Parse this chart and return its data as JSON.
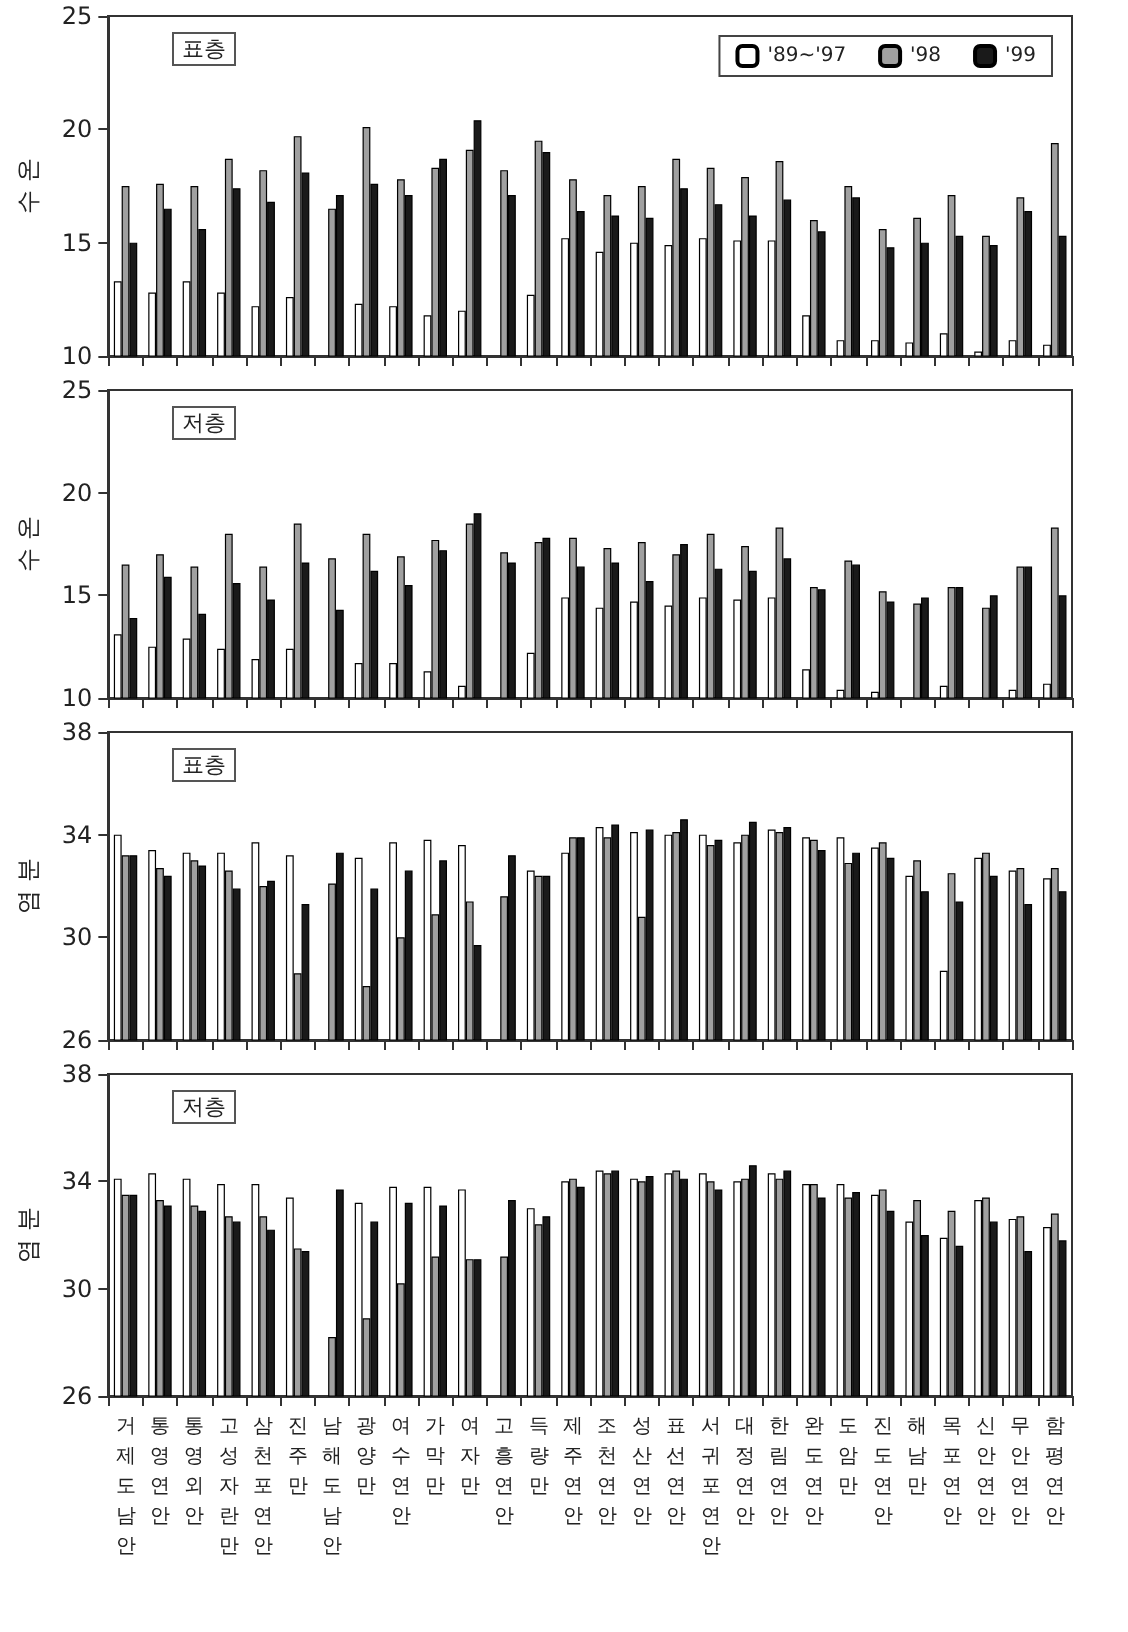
{
  "chart_data": [
    {
      "type": "bar",
      "title": "표층",
      "ylabel": "수 온",
      "categories": [
        "거제도남안",
        "통영연안",
        "통영외안",
        "고성자란만",
        "삼천포연안",
        "진주만",
        "남해도남안",
        "광양만",
        "여수연안",
        "가막만",
        "여자만",
        "고흥연안",
        "득량만",
        "제주연안",
        "조천연안",
        "성산연안",
        "표선연안",
        "서귀포연안",
        "대정연안",
        "한림연안",
        "완도연안",
        "도암만",
        "진도연안",
        "해남만",
        "목포연안",
        "신안연안",
        "무안연안",
        "함평연안"
      ],
      "ylim": [
        10,
        25
      ],
      "yticks": [
        10,
        15,
        20,
        25
      ],
      "tick_labels": "y",
      "grid": false,
      "legend": "top right",
      "series": [
        {
          "name": "'89∼'97",
          "color": "#ffffff",
          "values": [
            13.3,
            12.8,
            13.3,
            12.8,
            12.2,
            12.6,
            null,
            12.3,
            12.2,
            11.8,
            12.0,
            null,
            12.7,
            15.2,
            14.6,
            15.0,
            14.9,
            15.2,
            15.1,
            15.1,
            11.8,
            10.7,
            10.7,
            10.6,
            11.0,
            10.2,
            10.7,
            10.5
          ]
        },
        {
          "name": "'98",
          "color": "#a0a0a0",
          "values": [
            17.5,
            17.6,
            17.5,
            18.7,
            18.2,
            19.7,
            16.5,
            20.1,
            17.8,
            18.3,
            19.1,
            18.2,
            19.5,
            17.8,
            17.1,
            17.5,
            18.7,
            18.3,
            17.9,
            18.6,
            16.0,
            17.5,
            15.6,
            16.1,
            17.1,
            15.3,
            17.0,
            19.4
          ]
        },
        {
          "name": "'99",
          "color": "#1a1a1a",
          "values": [
            15.0,
            16.5,
            15.6,
            17.4,
            16.8,
            18.1,
            17.1,
            17.6,
            17.1,
            18.7,
            20.4,
            17.1,
            19.0,
            16.4,
            16.2,
            16.1,
            17.4,
            16.7,
            16.2,
            16.9,
            15.5,
            17.0,
            14.8,
            15.0,
            15.3,
            14.9,
            16.4,
            15.3
          ]
        }
      ]
    },
    {
      "type": "bar",
      "title": "저층",
      "ylabel": "수 온",
      "categories": [
        "거제도남안",
        "통영연안",
        "통영외안",
        "고성자란만",
        "삼천포연안",
        "진주만",
        "남해도남안",
        "광양만",
        "여수연안",
        "가막만",
        "여자만",
        "고흥연안",
        "득량만",
        "제주연안",
        "조천연안",
        "성산연안",
        "표선연안",
        "서귀포연안",
        "대정연안",
        "한림연안",
        "완도연안",
        "도암만",
        "진도연안",
        "해남만",
        "목포연안",
        "신안연안",
        "무안연안",
        "함평연안"
      ],
      "ylim": [
        10,
        25
      ],
      "yticks": [
        10,
        15,
        20,
        25
      ],
      "tick_labels": "y",
      "grid": false,
      "series": [
        {
          "color": "#ffffff",
          "values": [
            13.1,
            12.5,
            12.9,
            12.4,
            11.9,
            12.4,
            null,
            11.7,
            11.7,
            11.3,
            10.6,
            null,
            12.2,
            14.9,
            14.4,
            14.7,
            14.5,
            14.9,
            14.8,
            14.9,
            11.4,
            10.4,
            10.3,
            null,
            10.6,
            null,
            10.4,
            10.7
          ]
        },
        {
          "color": "#a0a0a0",
          "values": [
            16.5,
            17.0,
            16.4,
            18.0,
            16.4,
            18.5,
            16.8,
            18.0,
            16.9,
            17.7,
            18.5,
            17.1,
            17.6,
            17.8,
            17.3,
            17.6,
            17.0,
            18.0,
            17.4,
            18.3,
            15.4,
            16.7,
            15.2,
            14.6,
            15.4,
            14.4,
            16.4,
            18.3
          ]
        },
        {
          "color": "#1a1a1a",
          "values": [
            13.9,
            15.9,
            14.1,
            15.6,
            14.8,
            16.6,
            14.3,
            16.2,
            15.5,
            17.2,
            19.0,
            16.6,
            17.8,
            16.4,
            16.6,
            15.7,
            17.5,
            16.3,
            16.2,
            16.8,
            15.3,
            16.5,
            14.7,
            14.9,
            15.4,
            15.0,
            16.4,
            15.0
          ]
        }
      ]
    },
    {
      "type": "bar",
      "title": "표층",
      "ylabel": "염 분",
      "categories": [
        "거제도남안",
        "통영연안",
        "통영외안",
        "고성자란만",
        "삼천포연안",
        "진주만",
        "남해도남안",
        "광양만",
        "여수연안",
        "가막만",
        "여자만",
        "고흥연안",
        "득량만",
        "제주연안",
        "조천연안",
        "성산연안",
        "표선연안",
        "서귀포연안",
        "대정연안",
        "한림연안",
        "완도연안",
        "도암만",
        "진도연안",
        "해남만",
        "목포연안",
        "신안연안",
        "무안연안",
        "함평연안"
      ],
      "ylim": [
        26,
        38
      ],
      "yticks": [
        26,
        30,
        34,
        38
      ],
      "tick_labels": "y",
      "grid": false,
      "series": [
        {
          "color": "#ffffff",
          "values": [
            34.0,
            33.4,
            33.3,
            33.3,
            33.7,
            33.2,
            null,
            33.1,
            33.7,
            33.8,
            33.6,
            null,
            32.6,
            33.3,
            34.3,
            34.1,
            34.0,
            34.0,
            33.7,
            34.2,
            33.9,
            33.9,
            33.5,
            32.4,
            28.7,
            33.1,
            32.6,
            32.3
          ]
        },
        {
          "color": "#a0a0a0",
          "values": [
            33.2,
            32.7,
            33.0,
            32.6,
            32.0,
            28.6,
            32.1,
            28.1,
            30.0,
            30.9,
            31.4,
            31.6,
            32.4,
            33.9,
            33.9,
            30.8,
            34.1,
            33.6,
            34.0,
            34.1,
            33.8,
            32.9,
            33.7,
            33.0,
            32.5,
            33.3,
            32.7,
            32.7
          ]
        },
        {
          "color": "#1a1a1a",
          "values": [
            33.2,
            32.4,
            32.8,
            31.9,
            32.2,
            31.3,
            33.3,
            31.9,
            32.6,
            33.0,
            29.7,
            33.2,
            32.4,
            33.9,
            34.4,
            34.2,
            34.6,
            33.8,
            34.5,
            34.3,
            33.4,
            33.3,
            33.1,
            31.8,
            31.4,
            32.4,
            31.3,
            31.8
          ]
        }
      ]
    },
    {
      "type": "bar",
      "title": "저층",
      "ylabel": "염 분",
      "categories": [
        "거제도남안",
        "통영연안",
        "통영외안",
        "고성자란만",
        "삼천포연안",
        "진주만",
        "남해도남안",
        "광양만",
        "여수연안",
        "가막만",
        "여자만",
        "고흥연안",
        "득량만",
        "제주연안",
        "조천연안",
        "성산연안",
        "표선연안",
        "서귀포연안",
        "대정연안",
        "한림연안",
        "완도연안",
        "도암만",
        "진도연안",
        "해남만",
        "목포연안",
        "신안연안",
        "무안연안",
        "함평연안"
      ],
      "ylim": [
        26,
        38
      ],
      "yticks": [
        26,
        30,
        34,
        38
      ],
      "grid": false,
      "series": [
        {
          "color": "#ffffff",
          "values": [
            34.1,
            34.3,
            34.1,
            33.9,
            33.9,
            33.4,
            null,
            33.2,
            33.8,
            33.8,
            33.7,
            null,
            33.0,
            34.0,
            34.4,
            34.1,
            34.3,
            34.3,
            34.0,
            34.3,
            33.9,
            33.9,
            33.5,
            32.5,
            31.9,
            33.3,
            32.6,
            32.3
          ]
        },
        {
          "color": "#a0a0a0",
          "values": [
            33.5,
            33.3,
            33.1,
            32.7,
            32.7,
            31.5,
            28.2,
            28.9,
            30.2,
            31.2,
            31.1,
            31.2,
            32.4,
            34.1,
            34.3,
            34.0,
            34.4,
            34.0,
            34.1,
            34.1,
            33.9,
            33.4,
            33.7,
            33.3,
            32.9,
            33.4,
            32.7,
            32.8
          ]
        },
        {
          "color": "#1a1a1a",
          "values": [
            33.5,
            33.1,
            32.9,
            32.5,
            32.2,
            31.4,
            33.7,
            32.5,
            33.2,
            33.1,
            31.1,
            33.3,
            32.7,
            33.8,
            34.4,
            34.2,
            34.1,
            33.7,
            34.6,
            34.4,
            33.4,
            33.6,
            32.9,
            32.0,
            31.6,
            32.5,
            31.4,
            31.8
          ]
        }
      ]
    }
  ]
}
